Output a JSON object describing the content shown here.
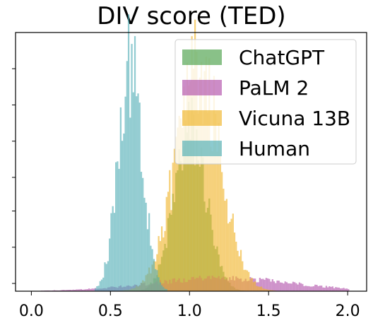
{
  "chart_data": {
    "type": "bar",
    "title": "DIV score (TED)",
    "xlabel": "",
    "ylabel": "",
    "xlim": [
      -0.1,
      2.12
    ],
    "ylim": [
      0,
      1.0
    ],
    "x_ticks": [
      0.0,
      0.5,
      1.0,
      1.5,
      2.0
    ],
    "x_tick_labels": [
      "0.0",
      "0.5",
      "1.0",
      "1.5",
      "2.0"
    ],
    "y_ticks": [
      0.03,
      0.17,
      0.31,
      0.44,
      0.58,
      0.72,
      0.86
    ],
    "y_tick_labels": [],
    "legend_position": "top-right",
    "bin_width": 0.01,
    "series": [
      {
        "name": "ChatGPT",
        "color": "#4a9f48",
        "peak": 0.62,
        "center": 1.0,
        "spread": 0.1,
        "x_range": [
          0.4,
          1.5
        ],
        "values": []
      },
      {
        "name": "PaLM 2",
        "color": "#b04fa9",
        "peak": 0.05,
        "center": 1.2,
        "spread": 0.45,
        "x_range": [
          0.0,
          2.0
        ],
        "values": []
      },
      {
        "name": "Vicuna 13B",
        "color": "#f0b326",
        "peak": 0.86,
        "center": 1.05,
        "spread": 0.14,
        "x_range": [
          0.5,
          2.0
        ],
        "values": []
      },
      {
        "name": "Human",
        "color": "#4fadb5",
        "peak": 0.88,
        "center": 0.62,
        "spread": 0.075,
        "x_range": [
          0.4,
          0.85
        ],
        "values": []
      }
    ]
  }
}
